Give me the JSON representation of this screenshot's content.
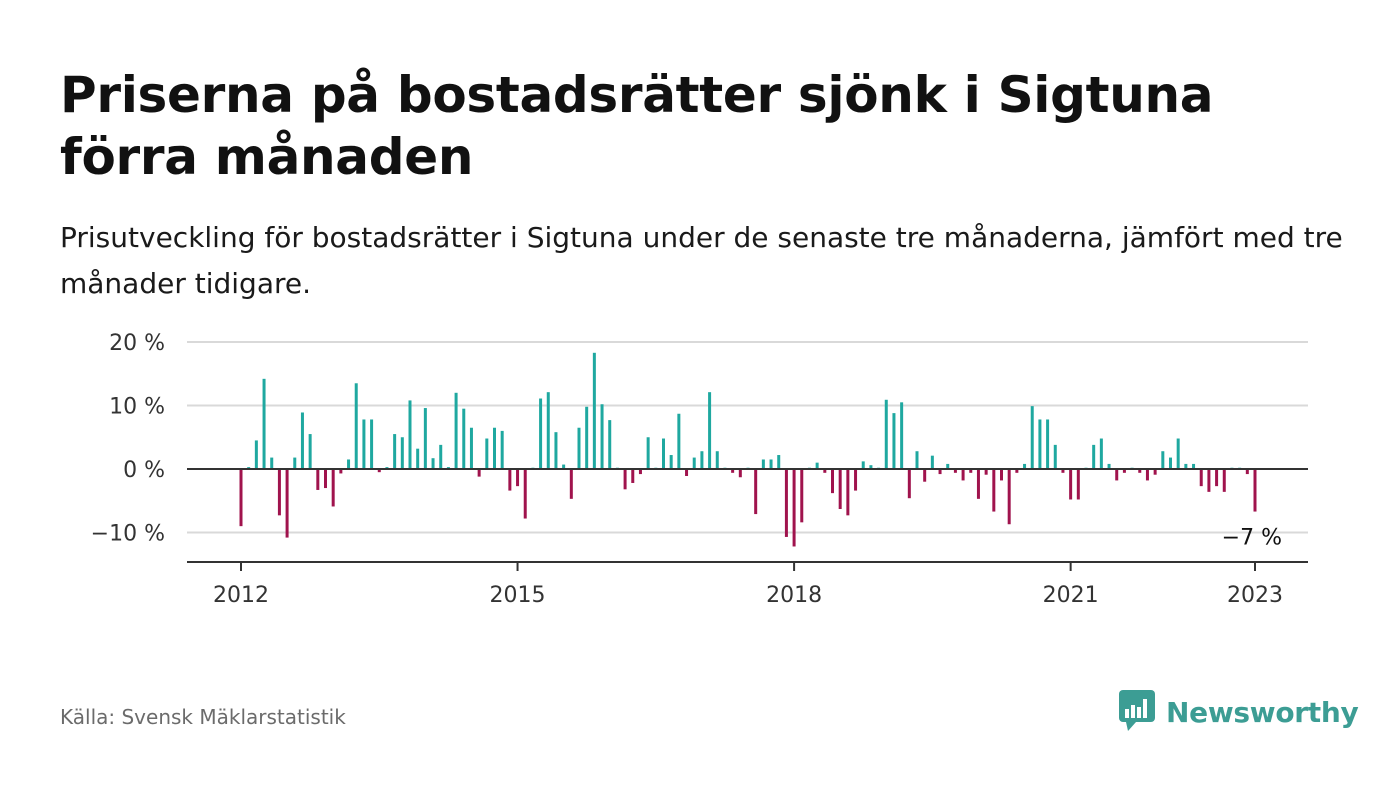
{
  "title": "Priserna på bostadsrätter sjönk i Sigtuna förra månaden",
  "subtitle": "Prisutveckling för bostadsrätter i Sigtuna under de senaste tre månaderna, jämfört med tre månader tidigare.",
  "source": "Källa: Svensk Mäklarstatistik",
  "brand": {
    "name": "Newsworthy",
    "icon": "newsworthy-logo-icon"
  },
  "colors": {
    "positive": "#1fa8a0",
    "negative": "#a0134d",
    "grid": "#d9d9d9",
    "axis": "#333333",
    "brand": "#3c9d94"
  },
  "chart_data": {
    "type": "bar",
    "x_unit": "month",
    "x_start": "2012-01",
    "x_end": "2023-01",
    "ylim": [
      -14,
      20
    ],
    "yticks": [
      20,
      10,
      0,
      -10
    ],
    "ytick_labels": [
      "20 %",
      "10 %",
      "0 %",
      "−10 %"
    ],
    "xticks": [
      2012,
      2015,
      2018,
      2021,
      2023
    ],
    "xtick_labels": [
      "2012",
      "2015",
      "2018",
      "2021",
      "2023"
    ],
    "grid": true,
    "annotation": {
      "text": "−7 %",
      "at": "2023-01"
    },
    "values": [
      -9,
      0.3,
      4.5,
      14.2,
      1.8,
      -7.3,
      -10.8,
      1.8,
      8.9,
      5.5,
      -3.3,
      -3,
      -5.9,
      -0.7,
      1.5,
      13.5,
      7.8,
      7.8,
      -0.5,
      0.3,
      5.5,
      5,
      10.8,
      3.2,
      9.6,
      1.7,
      3.8,
      0.3,
      12,
      9.5,
      6.5,
      -1.2,
      4.8,
      6.5,
      6,
      -3.4,
      -2.7,
      -7.8,
      0.2,
      11.1,
      12.1,
      5.8,
      0.7,
      -4.7,
      6.5,
      9.8,
      18.3,
      10.2,
      7.7,
      0.2,
      -3.2,
      -2.2,
      -0.8,
      5,
      0.2,
      4.8,
      2.2,
      8.7,
      -1.1,
      1.8,
      2.8,
      12.1,
      2.8,
      0.2,
      -0.6,
      -1.3,
      0.2,
      -7.1,
      1.5,
      1.5,
      2.2,
      -10.7,
      -12.2,
      -8.4,
      0.2,
      1,
      -0.6,
      -3.8,
      -6.3,
      -7.3,
      -3.4,
      1.2,
      0.6,
      0.2,
      10.9,
      8.8,
      10.5,
      -4.6,
      2.8,
      -2,
      2.1,
      -0.8,
      0.8,
      -0.6,
      -1.8,
      -0.6,
      -4.7,
      -0.9,
      -6.7,
      -1.8,
      -8.7,
      -0.6,
      0.8,
      9.9,
      7.8,
      7.8,
      3.8,
      -0.6,
      -4.8,
      -4.8,
      0.2,
      3.8,
      4.8,
      0.8,
      -1.8,
      -0.6,
      0.2,
      -0.6,
      -1.8,
      -0.9,
      2.8,
      1.8,
      4.8,
      0.8,
      0.8,
      -2.7,
      -3.6,
      -2.7,
      -3.6,
      0.2,
      0.2,
      -0.8,
      -6.7
    ]
  }
}
